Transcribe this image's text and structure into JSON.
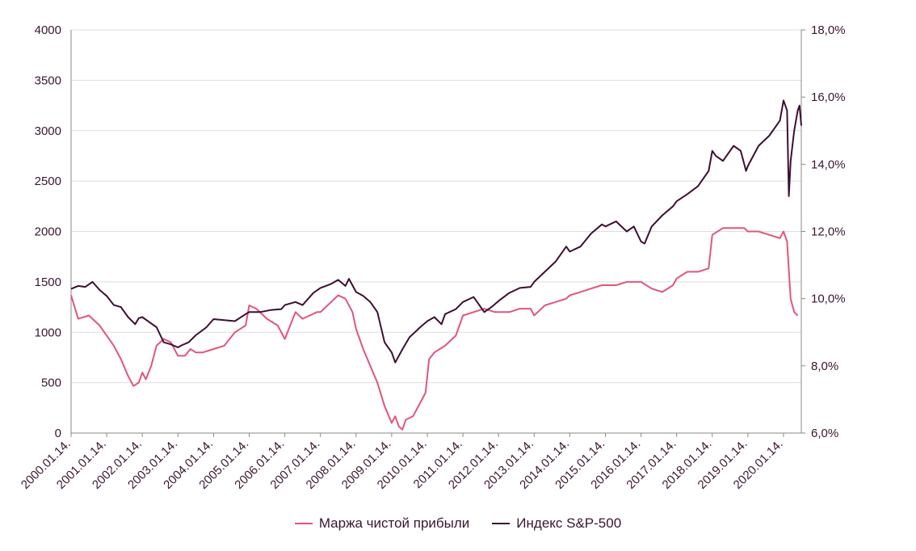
{
  "chart_data": {
    "type": "line",
    "title": "",
    "x_tick_labels": [
      "2000.01.14.",
      "2001.01.14.",
      "2002.01.14.",
      "2003.01.14.",
      "2004.01.14.",
      "2005.01.14.",
      "2006.01.14.",
      "2007.01.14.",
      "2008.01.14.",
      "2009.01.14.",
      "2010.01.14.",
      "2011.01.14.",
      "2012.01.14.",
      "2013.01.14.",
      "2014.01.14.",
      "2015.01.14.",
      "2016.01.14.",
      "2017.01.14.",
      "2018.01.14.",
      "2019.01.14.",
      "2020.01.14."
    ],
    "y_left": {
      "ticks": [
        "0",
        "500",
        "1000",
        "1500",
        "2000",
        "2500",
        "3000",
        "3500",
        "4000"
      ],
      "ylim": [
        0,
        4000
      ]
    },
    "y_right": {
      "ticks": [
        "6,0%",
        "8,0%",
        "10,0%",
        "12,0%",
        "14,0%",
        "16,0%",
        "18,0%"
      ],
      "ylim": [
        6,
        18
      ]
    },
    "grid": "horizontal",
    "legend_position": "bottom-center",
    "series": [
      {
        "name": "Маржа чистой прибыли",
        "axis": "right",
        "color": "#e0567a",
        "x": [
          2000.0,
          2000.2,
          2000.5,
          2000.8,
          2001.0,
          2001.2,
          2001.4,
          2001.6,
          2001.75,
          2001.9,
          2002.0,
          2002.1,
          2002.25,
          2002.4,
          2002.6,
          2002.8,
          2003.0,
          2003.2,
          2003.35,
          2003.5,
          2003.7,
          2004.0,
          2004.3,
          2004.6,
          2004.9,
          2005.0,
          2005.2,
          2005.5,
          2005.8,
          2006.0,
          2006.3,
          2006.5,
          2006.7,
          2006.9,
          2007.0,
          2007.3,
          2007.5,
          2007.7,
          2007.9,
          2008.0,
          2008.2,
          2008.4,
          2008.6,
          2008.8,
          2009.0,
          2009.1,
          2009.2,
          2009.3,
          2009.4,
          2009.6,
          2009.8,
          2009.95,
          2010.05,
          2010.2,
          2010.5,
          2010.8,
          2011.0,
          2011.3,
          2011.6,
          2011.9,
          2012.0,
          2012.3,
          2012.6,
          2012.9,
          2013.0,
          2013.3,
          2013.6,
          2013.9,
          2014.0,
          2014.3,
          2014.6,
          2014.9,
          2015.0,
          2015.3,
          2015.6,
          2015.9,
          2016.0,
          2016.3,
          2016.6,
          2016.9,
          2017.0,
          2017.3,
          2017.6,
          2017.9,
          2018.0,
          2018.3,
          2018.6,
          2018.9,
          2019.0,
          2019.3,
          2019.6,
          2019.9,
          2020.0,
          2020.1,
          2020.2,
          2020.3,
          2020.4
        ],
        "values": [
          10.1,
          9.4,
          9.5,
          9.2,
          8.9,
          8.6,
          8.2,
          7.7,
          7.4,
          7.5,
          7.8,
          7.6,
          8.0,
          8.6,
          8.8,
          8.7,
          8.3,
          8.3,
          8.5,
          8.4,
          8.4,
          8.5,
          8.6,
          9.0,
          9.2,
          9.8,
          9.7,
          9.4,
          9.2,
          8.8,
          9.6,
          9.4,
          9.5,
          9.6,
          9.6,
          9.9,
          10.1,
          10.0,
          9.6,
          9.1,
          8.5,
          8.0,
          7.5,
          6.8,
          6.3,
          6.5,
          6.2,
          6.1,
          6.4,
          6.5,
          6.9,
          7.2,
          8.2,
          8.4,
          8.6,
          8.9,
          9.5,
          9.6,
          9.7,
          9.6,
          9.6,
          9.6,
          9.7,
          9.7,
          9.5,
          9.8,
          9.9,
          10.0,
          10.1,
          10.2,
          10.3,
          10.4,
          10.4,
          10.4,
          10.5,
          10.5,
          10.5,
          10.3,
          10.2,
          10.4,
          10.6,
          10.8,
          10.8,
          10.9,
          11.9,
          12.1,
          12.1,
          12.1,
          12.0,
          12.0,
          11.9,
          11.8,
          12.0,
          11.7,
          10.0,
          9.6,
          9.5
        ]
      },
      {
        "name": "Индекс S&P-500",
        "axis": "left",
        "color": "#3d0f32",
        "x": [
          2000.0,
          2000.2,
          2000.4,
          2000.6,
          2000.8,
          2001.0,
          2001.2,
          2001.4,
          2001.6,
          2001.8,
          2001.9,
          2002.0,
          2002.2,
          2002.4,
          2002.6,
          2002.8,
          2003.0,
          2003.1,
          2003.3,
          2003.5,
          2003.8,
          2004.0,
          2004.3,
          2004.6,
          2004.9,
          2005.0,
          2005.3,
          2005.6,
          2005.9,
          2006.0,
          2006.3,
          2006.5,
          2006.8,
          2007.0,
          2007.3,
          2007.5,
          2007.7,
          2007.8,
          2008.0,
          2008.2,
          2008.4,
          2008.6,
          2008.8,
          2008.9,
          2009.0,
          2009.1,
          2009.3,
          2009.5,
          2009.8,
          2010.0,
          2010.2,
          2010.4,
          2010.5,
          2010.8,
          2011.0,
          2011.3,
          2011.6,
          2011.8,
          2012.0,
          2012.3,
          2012.6,
          2012.9,
          2013.0,
          2013.3,
          2013.6,
          2013.9,
          2014.0,
          2014.3,
          2014.6,
          2014.9,
          2015.0,
          2015.3,
          2015.6,
          2015.8,
          2016.0,
          2016.1,
          2016.3,
          2016.6,
          2016.9,
          2017.0,
          2017.3,
          2017.6,
          2017.9,
          2018.0,
          2018.1,
          2018.3,
          2018.6,
          2018.8,
          2018.95,
          2019.0,
          2019.3,
          2019.6,
          2019.9,
          2020.0,
          2020.1,
          2020.15,
          2020.2,
          2020.3,
          2020.4,
          2020.45,
          2020.5
        ],
        "values": [
          1430,
          1460,
          1450,
          1500,
          1420,
          1360,
          1270,
          1250,
          1150,
          1080,
          1140,
          1150,
          1100,
          1050,
          900,
          880,
          850,
          870,
          900,
          970,
          1050,
          1130,
          1120,
          1110,
          1180,
          1200,
          1200,
          1220,
          1230,
          1270,
          1300,
          1270,
          1390,
          1440,
          1480,
          1520,
          1460,
          1530,
          1400,
          1360,
          1300,
          1200,
          900,
          850,
          800,
          700,
          830,
          950,
          1050,
          1110,
          1150,
          1080,
          1180,
          1230,
          1300,
          1350,
          1200,
          1250,
          1310,
          1390,
          1440,
          1450,
          1500,
          1600,
          1700,
          1850,
          1800,
          1850,
          1980,
          2070,
          2050,
          2100,
          2000,
          2050,
          1900,
          1880,
          2050,
          2160,
          2250,
          2300,
          2370,
          2450,
          2600,
          2800,
          2750,
          2700,
          2850,
          2800,
          2600,
          2650,
          2850,
          2950,
          3100,
          3300,
          3200,
          2350,
          2700,
          3000,
          3200,
          3250,
          3050
        ]
      }
    ]
  }
}
